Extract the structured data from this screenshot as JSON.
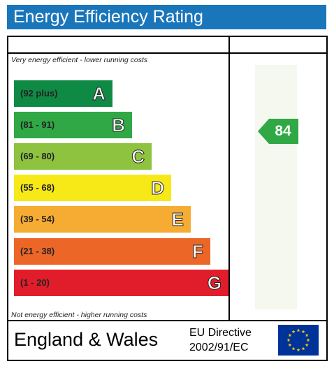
{
  "title": "Energy Efficiency Rating",
  "captions": {
    "top": "Very energy efficient - lower running costs",
    "bottom": "Not energy efficient - higher running costs"
  },
  "bands": [
    {
      "range": "(92 plus)",
      "letter": "A",
      "color": "#0f8a45"
    },
    {
      "range": "(81 - 91)",
      "letter": "B",
      "color": "#2fa845"
    },
    {
      "range": "(69 - 80)",
      "letter": "C",
      "color": "#8dc33f"
    },
    {
      "range": "(55 - 68)",
      "letter": "D",
      "color": "#f7e918"
    },
    {
      "range": "(39 - 54)",
      "letter": "E",
      "color": "#f6ac32"
    },
    {
      "range": "(21 - 38)",
      "letter": "F",
      "color": "#ec6628"
    },
    {
      "range": "(1 - 20)",
      "letter": "G",
      "color": "#e21d2b"
    }
  ],
  "rating": {
    "value": "84",
    "band": "B",
    "color": "#2fa845"
  },
  "footer": {
    "country": "England & Wales",
    "directive_line1": "EU Directive",
    "directive_line2": "2002/91/EC"
  },
  "colors": {
    "title_bar": "#1a76bb",
    "eu_flag": "#003399",
    "eu_stars": "#ffcc00"
  },
  "icons": {
    "flag": "eu-flag-icon"
  }
}
